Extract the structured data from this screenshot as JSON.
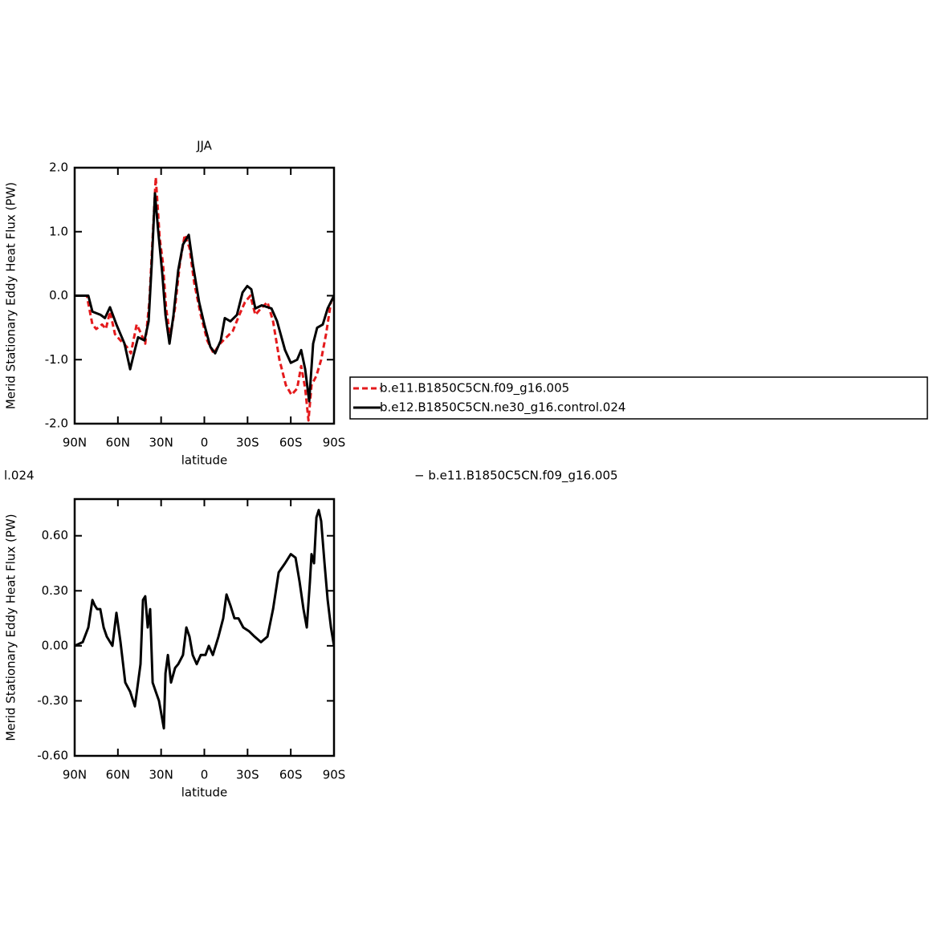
{
  "chart_data": [
    {
      "type": "line",
      "title": "JJA",
      "xlabel": "latitude",
      "ylabel": "Merid Stationary Eddy Heat Flux (PW)",
      "xlim": [
        90,
        -90
      ],
      "xticks": [
        {
          "value": 90,
          "label": "90N"
        },
        {
          "value": 60,
          "label": "60N"
        },
        {
          "value": 30,
          "label": "30N"
        },
        0,
        {
          "value": -30,
          "label": "30S"
        },
        {
          "value": -60,
          "label": "60S"
        },
        {
          "value": -90,
          "label": "90S"
        }
      ],
      "ylim": [
        -2,
        2
      ],
      "yticks": [
        {
          "value": 2,
          "label": "2.0"
        },
        {
          "value": 1,
          "label": "1.0"
        },
        {
          "value": 0,
          "label": "0.0"
        },
        {
          "value": -1,
          "label": "-1.0"
        },
        {
          "value": -2,
          "label": "-2.0"
        }
      ],
      "legend": "outside-right",
      "series": [
        {
          "name": "b.e11.B1850C5CN.f09_g16.005",
          "color": "#e41a1c",
          "dash": true,
          "x": [
            90,
            81.6,
            77.7,
            75,
            71,
            68.3,
            65.5,
            62,
            58.2,
            53.8,
            51,
            47,
            44.8,
            41,
            38.2,
            33.7,
            31,
            28.7,
            26.5,
            23.7,
            20.4,
            17,
            13.6,
            10.3,
            7,
            2.5,
            -2,
            -6.4,
            -10.9,
            -15.4,
            -19.8,
            -24.3,
            -28.2,
            -32,
            -35.4,
            -39.3,
            -43.8,
            -47.7,
            -52.1,
            -56.6,
            -60.5,
            -64.4,
            -67.2,
            -70,
            -72.3,
            -74.4,
            -77.8,
            -81.1,
            -84.5,
            -87.9,
            -90
          ],
          "values": [
            0,
            0,
            -0.45,
            -0.52,
            -0.45,
            -0.52,
            -0.25,
            -0.6,
            -0.7,
            -0.8,
            -0.9,
            -0.45,
            -0.55,
            -0.75,
            -0.1,
            1.85,
            0.9,
            0.5,
            -0.2,
            -0.65,
            -0.2,
            0.5,
            0.95,
            0.75,
            0.2,
            -0.3,
            -0.7,
            -0.9,
            -0.75,
            -0.65,
            -0.55,
            -0.3,
            -0.1,
            0,
            -0.3,
            -0.2,
            -0.1,
            -0.4,
            -1,
            -1.4,
            -1.55,
            -1.45,
            -1.1,
            -1.45,
            -1.95,
            -1.4,
            -1.25,
            -1,
            -0.6,
            -0.1,
            0
          ]
        },
        {
          "name": "b.e12.B1850C5CN.ne30_g16.control.024",
          "color": "#000000",
          "dash": false,
          "x": [
            90,
            80.5,
            77.7,
            72,
            69,
            65.5,
            61,
            55.4,
            51.5,
            48.8,
            46,
            41.5,
            38.7,
            36.5,
            34.3,
            32,
            29.2,
            27,
            24.2,
            21.4,
            18.1,
            14.8,
            10.8,
            8,
            3.6,
            0,
            -4.2,
            -7.5,
            -11.4,
            -14.2,
            -18.1,
            -22.6,
            -26.5,
            -29.8,
            -32.6,
            -35.4,
            -39.9,
            -46.6,
            -50.5,
            -56,
            -60,
            -64.4,
            -67.2,
            -70,
            -72.8,
            -75.5,
            -78.3,
            -82.2,
            -85.6,
            -90
          ],
          "values": [
            0,
            0,
            -0.25,
            -0.3,
            -0.35,
            -0.18,
            -0.45,
            -0.75,
            -1.15,
            -0.9,
            -0.65,
            -0.7,
            -0.4,
            0.5,
            1.6,
            1,
            0.35,
            -0.3,
            -0.75,
            -0.3,
            0.4,
            0.8,
            0.95,
            0.5,
            -0.1,
            -0.45,
            -0.8,
            -0.9,
            -0.7,
            -0.35,
            -0.4,
            -0.3,
            0.05,
            0.15,
            0.1,
            -0.2,
            -0.15,
            -0.2,
            -0.4,
            -0.85,
            -1.05,
            -1,
            -0.85,
            -1.15,
            -1.65,
            -0.75,
            -0.5,
            -0.45,
            -0.2,
            0
          ]
        }
      ]
    },
    {
      "type": "line",
      "title_left": "l.024",
      "title_right": "− b.e11.B1850C5CN.f09_g16.005",
      "xlabel": "latitude",
      "ylabel": "Merid Stationary Eddy Heat Flux (PW)",
      "xlim": [
        90,
        -90
      ],
      "xticks": [
        {
          "value": 90,
          "label": "90N"
        },
        {
          "value": 60,
          "label": "60N"
        },
        {
          "value": 30,
          "label": "30N"
        },
        0,
        {
          "value": -30,
          "label": "30S"
        },
        {
          "value": -60,
          "label": "60S"
        },
        {
          "value": -90,
          "label": "90S"
        }
      ],
      "ylim": [
        -0.6,
        0.8
      ],
      "yticks": [
        {
          "value": 0.6,
          "label": "0.60"
        },
        {
          "value": 0.3,
          "label": "0.30"
        },
        {
          "value": 0,
          "label": "0.00"
        },
        {
          "value": -0.3,
          "label": "-0.30"
        },
        {
          "value": -0.6,
          "label": "-0.60"
        }
      ],
      "series": [
        {
          "color": "#000000",
          "dash": false,
          "x": [
            90,
            84.4,
            80.5,
            77.7,
            76,
            74.4,
            72.2,
            69.9,
            67.7,
            63.8,
            61,
            58.2,
            54.9,
            51.5,
            48.2,
            44.3,
            42.6,
            41,
            39.3,
            37.6,
            35.9,
            33.7,
            31.5,
            29.2,
            28.1,
            27,
            25.3,
            23.1,
            20.3,
            18.1,
            14.8,
            12.5,
            10.3,
            8.1,
            5.3,
            2.5,
            -0.8,
            -3.1,
            -5.9,
            -9.8,
            -13.1,
            -15.4,
            -18.1,
            -20.9,
            -23.7,
            -27,
            -31,
            -34.9,
            -39.3,
            -43.8,
            -47.7,
            -51.6,
            -56,
            -60,
            -63.3,
            -66.1,
            -68.8,
            -71.1,
            -73.3,
            -74.4,
            -76.1,
            -77.8,
            -79.4,
            -81.1,
            -83.4,
            -85.6,
            -87.9,
            -90
          ],
          "values": [
            0,
            0.02,
            0.1,
            0.25,
            0.22,
            0.2,
            0.2,
            0.1,
            0.05,
            0,
            0.18,
            0.02,
            -0.2,
            -0.25,
            -0.33,
            -0.1,
            0.25,
            0.27,
            0.1,
            0.2,
            -0.2,
            -0.25,
            -0.3,
            -0.4,
            -0.45,
            -0.15,
            -0.05,
            -0.2,
            -0.12,
            -0.1,
            -0.05,
            0.1,
            0.05,
            -0.05,
            -0.1,
            -0.05,
            -0.05,
            0,
            -0.05,
            0.05,
            0.15,
            0.28,
            0.22,
            0.15,
            0.15,
            0.1,
            0.08,
            0.05,
            0.02,
            0.05,
            0.2,
            0.4,
            0.45,
            0.5,
            0.48,
            0.35,
            0.2,
            0.1,
            0.35,
            0.5,
            0.45,
            0.7,
            0.74,
            0.68,
            0.45,
            0.25,
            0.1,
            0
          ]
        }
      ]
    }
  ]
}
